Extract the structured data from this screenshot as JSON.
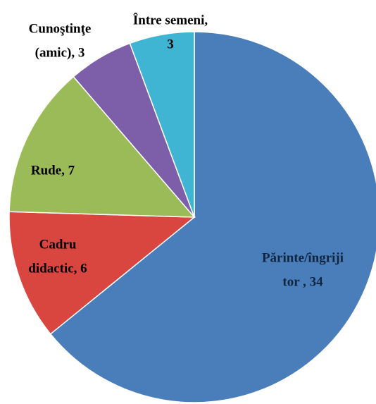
{
  "chart_data": {
    "type": "pie",
    "values": [
      34,
      6,
      7,
      3,
      3
    ],
    "value_labels": [
      [
        "Părinte/îngriji",
        "tor , 34"
      ],
      [
        "Cadru",
        "didactic, 6"
      ],
      [
        "Rude, 7"
      ],
      [
        "Cunoştinţe",
        "(amic), 3"
      ],
      [
        "Între semeni,",
        "3"
      ]
    ],
    "colors": [
      "#4a7ebb",
      "#d9453f",
      "#9bbb59",
      "#7d5ea8",
      "#3fb5d3"
    ],
    "start_angle": 0,
    "direction": "clockwise"
  }
}
